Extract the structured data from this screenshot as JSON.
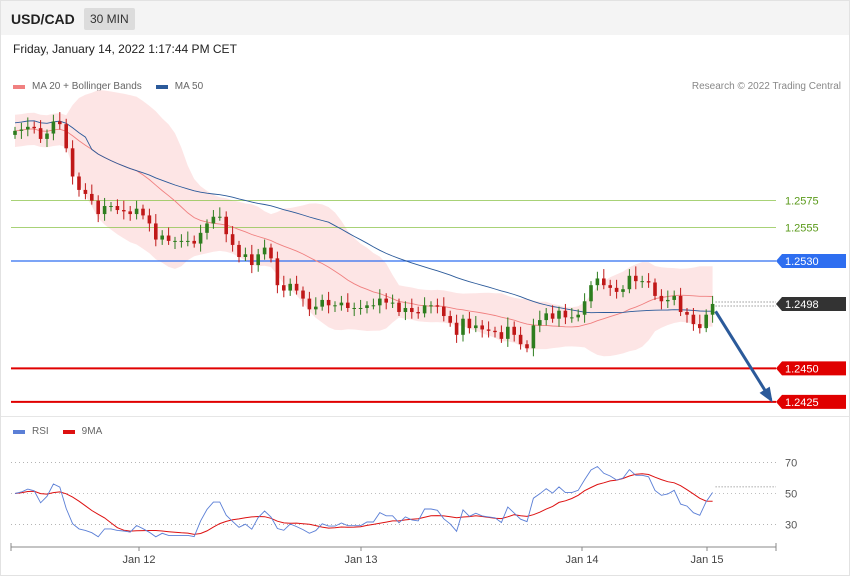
{
  "header": {
    "symbol": "USD/CAD",
    "timeframe": "30 MIN"
  },
  "datetime": "Friday, January 14, 2022 1:17:44 PM CET",
  "legend": {
    "main": [
      {
        "label": "MA 20 + Bollinger Bands",
        "color": "#f08080"
      },
      {
        "label": "MA 50",
        "color": "#2b5a9a"
      }
    ],
    "rsi": [
      {
        "label": "RSI",
        "color": "#5b7fd6"
      },
      {
        "label": "9MA",
        "color": "#dd1111"
      }
    ]
  },
  "copyright": "Research © 2022 Trading Central",
  "colors": {
    "up_candle": "#2e7d1e",
    "down_candle": "#c01818",
    "band_fill": "#fde2e2",
    "ma20": "#f08080",
    "ma50": "#2b5a9a",
    "resistance_green": "#8bc34a",
    "pivot_blue": "#2e6ef0",
    "support_red": "#e00000",
    "arrow": "#2b5a9a"
  },
  "chart_data": [
    {
      "type": "candlestick",
      "x_labels": [
        "Jan 12",
        "Jan 13",
        "Jan 14",
        "Jan 15"
      ],
      "ylim": [
        1.2416,
        1.265
      ],
      "current_price": "1.2498",
      "levels": [
        {
          "value": 1.2575,
          "label": "1.2575",
          "kind": "resistance"
        },
        {
          "value": 1.2555,
          "label": "1.2555",
          "kind": "resistance"
        },
        {
          "value": 1.253,
          "label": "1.2530",
          "kind": "pivot"
        },
        {
          "value": 1.245,
          "label": "1.2450",
          "kind": "support"
        },
        {
          "value": 1.2425,
          "label": "1.2425",
          "kind": "support"
        }
      ],
      "forecast_arrow": {
        "from": 1.2497,
        "to": 1.2425
      },
      "close": [
        1.2627,
        1.2628,
        1.263,
        1.2629,
        1.2621,
        1.2625,
        1.2634,
        1.2632,
        1.2614,
        1.2593,
        1.2583,
        1.258,
        1.2575,
        1.2565,
        1.2571,
        1.2571,
        1.2568,
        1.2567,
        1.2565,
        1.2569,
        1.2564,
        1.2558,
        1.2546,
        1.2549,
        1.2545,
        1.2545,
        1.2545,
        1.2545,
        1.2543,
        1.2551,
        1.2558,
        1.2563,
        1.2563,
        1.255,
        1.2542,
        1.2533,
        1.2535,
        1.2527,
        1.2535,
        1.254,
        1.2532,
        1.2512,
        1.2508,
        1.2513,
        1.2508,
        1.2502,
        1.2494,
        1.2496,
        1.2501,
        1.2497,
        1.2497,
        1.2499,
        1.2495,
        1.2495,
        1.2495,
        1.2497,
        1.2497,
        1.2502,
        1.2499,
        1.2499,
        1.2492,
        1.2495,
        1.2492,
        1.2491,
        1.2497,
        1.2497,
        1.2496,
        1.2489,
        1.2484,
        1.2475,
        1.2487,
        1.248,
        1.2482,
        1.2479,
        1.2478,
        1.2477,
        1.2472,
        1.2481,
        1.2475,
        1.2468,
        1.2465,
        1.2482,
        1.2486,
        1.2491,
        1.2487,
        1.2493,
        1.2488,
        1.2488,
        1.249,
        1.25,
        1.2512,
        1.2517,
        1.2512,
        1.251,
        1.2507,
        1.2509,
        1.2519,
        1.2515,
        1.2515,
        1.2514,
        1.2504,
        1.25,
        1.2501,
        1.2504,
        1.2492,
        1.249,
        1.2483,
        1.248,
        1.249,
        1.2498
      ],
      "open": [
        1.2624,
        1.2627,
        1.2628,
        1.263,
        1.2629,
        1.2621,
        1.2625,
        1.2634,
        1.2632,
        1.2614,
        1.2593,
        1.2583,
        1.258,
        1.2575,
        1.2565,
        1.2571,
        1.2571,
        1.2568,
        1.2567,
        1.2565,
        1.2569,
        1.2564,
        1.2558,
        1.2546,
        1.2549,
        1.2545,
        1.2545,
        1.2545,
        1.2545,
        1.2543,
        1.2551,
        1.2558,
        1.2563,
        1.2563,
        1.255,
        1.2542,
        1.2533,
        1.2535,
        1.2527,
        1.2535,
        1.254,
        1.2532,
        1.2512,
        1.2508,
        1.2513,
        1.2508,
        1.2502,
        1.2494,
        1.2496,
        1.2501,
        1.2497,
        1.2497,
        1.2499,
        1.2495,
        1.2495,
        1.2495,
        1.2497,
        1.2497,
        1.2502,
        1.2499,
        1.2499,
        1.2492,
        1.2495,
        1.2492,
        1.2491,
        1.2497,
        1.2497,
        1.2496,
        1.2489,
        1.2484,
        1.2475,
        1.2487,
        1.248,
        1.2482,
        1.2479,
        1.2478,
        1.2477,
        1.2472,
        1.2481,
        1.2475,
        1.2468,
        1.2465,
        1.2482,
        1.2486,
        1.2491,
        1.2487,
        1.2493,
        1.2488,
        1.2488,
        1.249,
        1.25,
        1.2512,
        1.2517,
        1.2512,
        1.251,
        1.2507,
        1.2509,
        1.2519,
        1.2515,
        1.2515,
        1.2514,
        1.2504,
        1.25,
        1.2501,
        1.2504,
        1.2492,
        1.249,
        1.2483,
        1.248,
        1.249
      ],
      "rsi": {
        "ylim": [
          18,
          82
        ],
        "levels": [
          70,
          50,
          30
        ],
        "level_labels": [
          "70",
          "50",
          "30"
        ],
        "current": 53
      }
    }
  ]
}
